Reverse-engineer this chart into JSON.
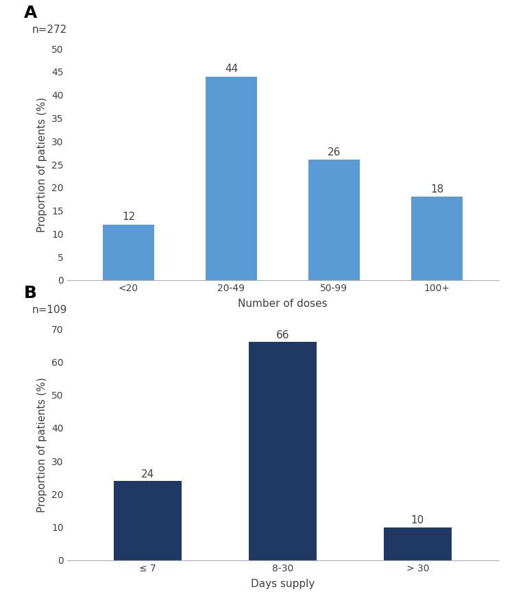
{
  "chart_A": {
    "categories": [
      "<20",
      "20-49",
      "50-99",
      "100+"
    ],
    "values": [
      12,
      44,
      26,
      18
    ],
    "bar_color": "#5B9BD5",
    "ylabel": "Proportion of patients (%)",
    "xlabel": "Number of doses",
    "ylim": [
      0,
      50
    ],
    "yticks": [
      0,
      5,
      10,
      15,
      20,
      25,
      30,
      35,
      40,
      45,
      50
    ],
    "label": "A",
    "n_label": "n=272"
  },
  "chart_B": {
    "categories": [
      "≤ 7",
      "8-30",
      "> 30"
    ],
    "values": [
      24,
      66,
      10
    ],
    "bar_color": "#1F3864",
    "ylabel": "Proportion of patients (%)",
    "xlabel": "Days supply",
    "ylim": [
      0,
      70
    ],
    "yticks": [
      0,
      10,
      20,
      30,
      40,
      50,
      60,
      70
    ],
    "label": "B",
    "n_label": "n=109"
  },
  "background_color": "#ffffff",
  "axis_label_color": "#404040",
  "tick_label_color": "#404040",
  "bar_label_color": "#404040",
  "label_fontsize": 18,
  "n_fontsize": 11,
  "axis_title_fontsize": 11,
  "tick_fontsize": 10,
  "bar_label_fontsize": 11
}
